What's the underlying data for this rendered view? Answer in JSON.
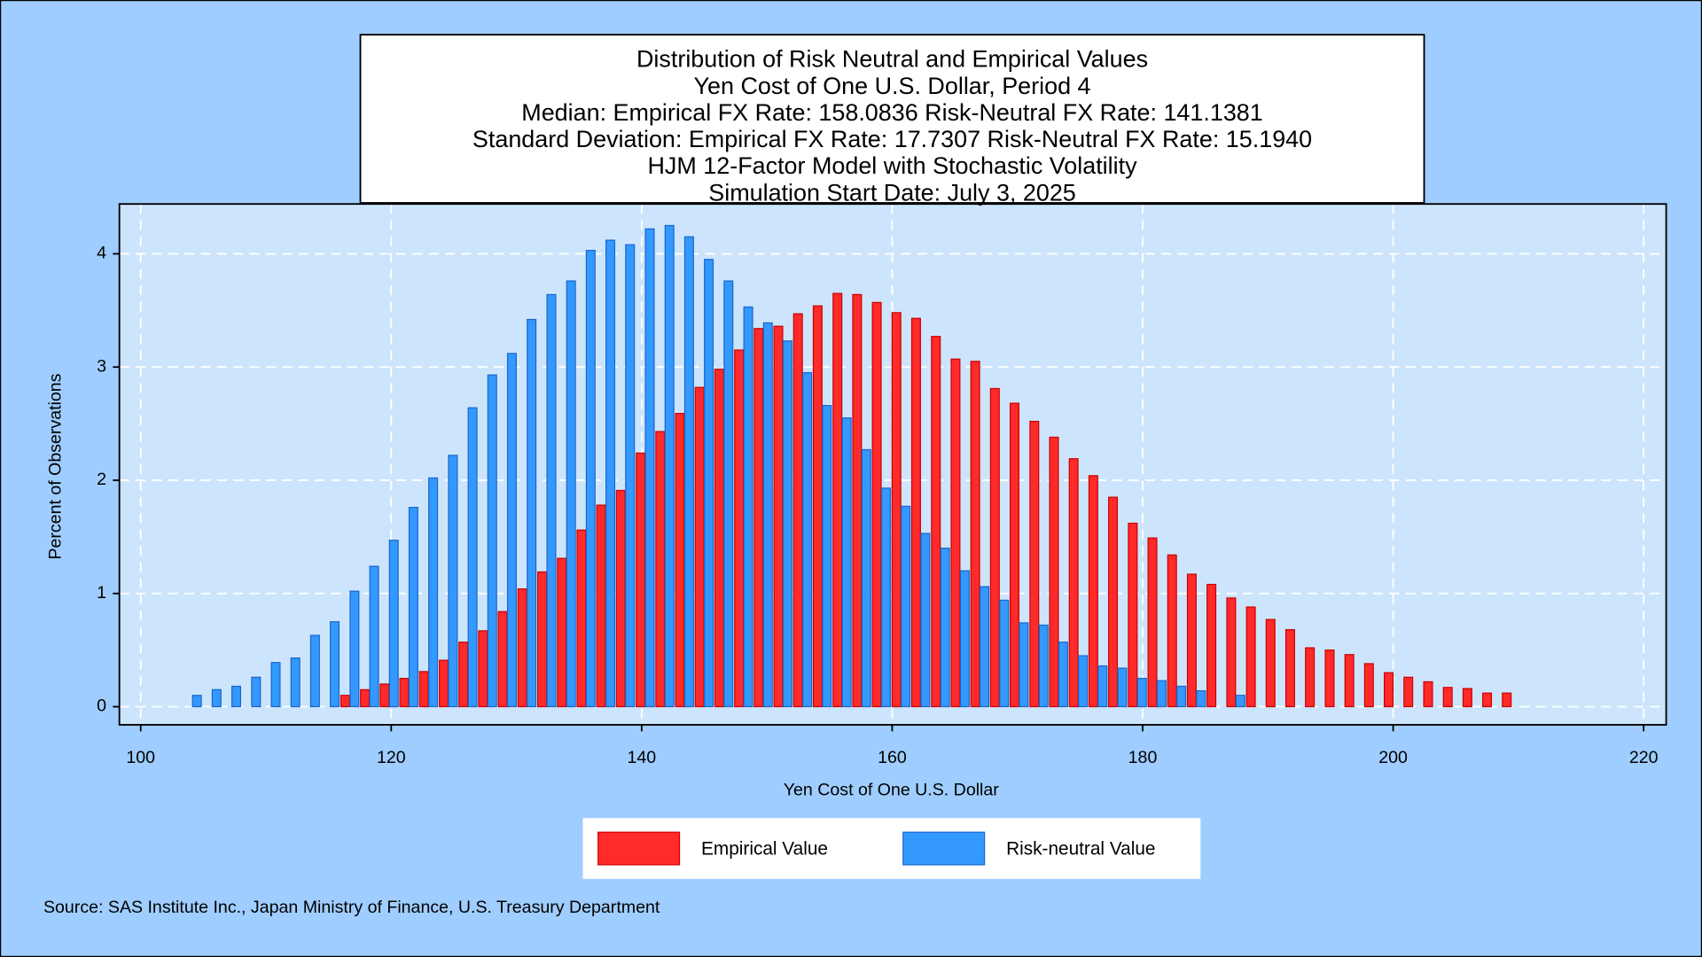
{
  "chart_data": {
    "type": "bar",
    "title": [
      "Distribution of Risk Neutral and Empirical Values",
      "Yen Cost of One U.S. Dollar, Period 4",
      "Median: Empirical FX Rate: 158.0836   Risk-Neutral FX Rate: 141.1381",
      "Standard Deviation: Empirical FX Rate: 17.7307   Risk-Neutral FX Rate: 15.1940",
      "HJM 12-Factor Model with Stochastic Volatility",
      "Simulation Start Date: July 3, 2025"
    ],
    "x_label": "Yen Cost of One U.S. Dollar",
    "y_label": "Percent of Observations",
    "source": "Source: SAS Institute Inc., Japan Ministry of Finance, U.S. Treasury Department",
    "x": [
      104.12,
      105.69,
      107.26,
      108.84,
      110.41,
      111.98,
      113.55,
      115.12,
      116.7,
      118.27,
      119.84,
      121.41,
      122.98,
      124.56,
      126.13,
      127.7,
      129.27,
      130.84,
      132.42,
      133.99,
      135.56,
      137.13,
      138.7,
      140.28,
      141.85,
      143.42,
      144.99,
      146.56,
      148.14,
      149.71,
      151.28,
      152.85,
      154.42,
      156.0,
      157.57,
      159.14,
      160.71,
      162.28,
      163.86,
      165.43,
      167.0,
      168.57,
      170.14,
      171.72,
      173.29,
      174.86,
      176.43,
      178.0,
      179.58,
      181.15,
      182.72,
      184.29,
      185.86,
      187.44,
      189.01,
      190.58,
      192.15,
      193.72,
      195.3,
      196.87,
      198.44,
      200.01,
      201.58,
      203.16,
      204.73,
      206.3,
      207.87,
      209.44
    ],
    "series": [
      {
        "name": "Empirical Value",
        "color": "#ff2a2a",
        "edge": "#cc0000",
        "values": [
          null,
          null,
          null,
          null,
          null,
          null,
          null,
          null,
          0.1,
          0.15,
          0.2,
          0.25,
          0.31,
          0.41,
          0.57,
          0.67,
          0.84,
          1.04,
          1.19,
          1.31,
          1.56,
          1.78,
          1.91,
          2.24,
          2.43,
          2.59,
          2.82,
          2.98,
          3.15,
          3.34,
          3.36,
          3.47,
          3.54,
          3.65,
          3.64,
          3.57,
          3.48,
          3.43,
          3.27,
          3.07,
          3.05,
          2.81,
          2.68,
          2.52,
          2.38,
          2.19,
          2.04,
          1.85,
          1.62,
          1.49,
          1.34,
          1.17,
          1.08,
          0.96,
          0.88,
          0.77,
          0.68,
          0.52,
          0.5,
          0.46,
          0.38,
          0.3,
          0.26,
          0.22,
          0.17,
          0.16,
          0.12,
          0.12
        ]
      },
      {
        "name": "Risk-neutral Value",
        "color": "#3399ff",
        "edge": "#1a66cc",
        "values": [
          0.1,
          0.15,
          0.18,
          0.26,
          0.39,
          0.43,
          0.63,
          0.75,
          1.02,
          1.24,
          1.47,
          1.76,
          2.02,
          2.22,
          2.64,
          2.93,
          3.12,
          3.42,
          3.64,
          3.76,
          4.03,
          4.12,
          4.08,
          4.22,
          4.25,
          4.15,
          3.95,
          3.76,
          3.53,
          3.39,
          3.23,
          2.95,
          2.66,
          2.55,
          2.27,
          1.93,
          1.77,
          1.53,
          1.4,
          1.2,
          1.06,
          0.94,
          0.74,
          0.72,
          0.57,
          0.45,
          0.36,
          0.34,
          0.25,
          0.23,
          0.18,
          0.14,
          null,
          0.1,
          null,
          null,
          null,
          null,
          null,
          null,
          null,
          null,
          null,
          null,
          null,
          null,
          null,
          null
        ]
      }
    ],
    "xlim": [
      98.3,
      221.8
    ],
    "ylim": [
      -0.16,
      4.44
    ],
    "xticks": [
      100,
      120,
      140,
      160,
      180,
      200,
      220
    ],
    "yticks": [
      0,
      1,
      2,
      3,
      4
    ],
    "grid": true,
    "legend": "bottom"
  }
}
